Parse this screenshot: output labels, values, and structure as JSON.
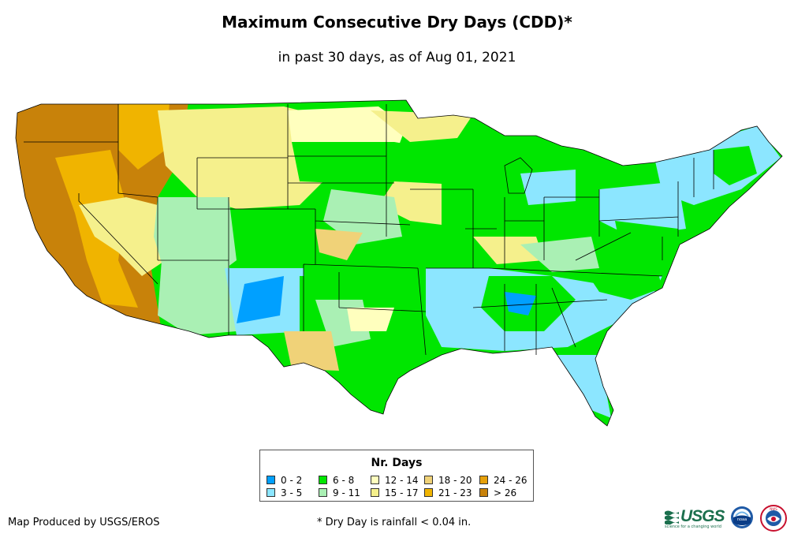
{
  "title": "Maximum Consecutive Dry Days (CDD)*",
  "subtitle": "in past 30 days, as of Aug 01, 2021",
  "legend": {
    "title": "Nr. Days",
    "items": [
      {
        "label": "0 - 2",
        "color": "#00a0ff"
      },
      {
        "label": "3 - 5",
        "color": "#8ce6ff"
      },
      {
        "label": "6 - 8",
        "color": "#00e600"
      },
      {
        "label": "9 - 11",
        "color": "#aaf0b4"
      },
      {
        "label": "12 - 14",
        "color": "#ffffbe"
      },
      {
        "label": "15 - 17",
        "color": "#f5f08c"
      },
      {
        "label": "18 - 20",
        "color": "#f0d278"
      },
      {
        "label": "21 - 23",
        "color": "#f0b400"
      },
      {
        "label": "24 - 26",
        "color": "#e6a00a"
      },
      {
        "label": "> 26",
        "color": "#c8820a"
      }
    ]
  },
  "credit": "Map Produced by USGS/EROS",
  "footnote": "* Dry Day is rainfall < 0.04 in.",
  "logos": {
    "usgs_text": "USGS",
    "usgs_tagline": "science for a changing world",
    "noaa_text": "noaa",
    "nws_text": "NWS"
  }
}
